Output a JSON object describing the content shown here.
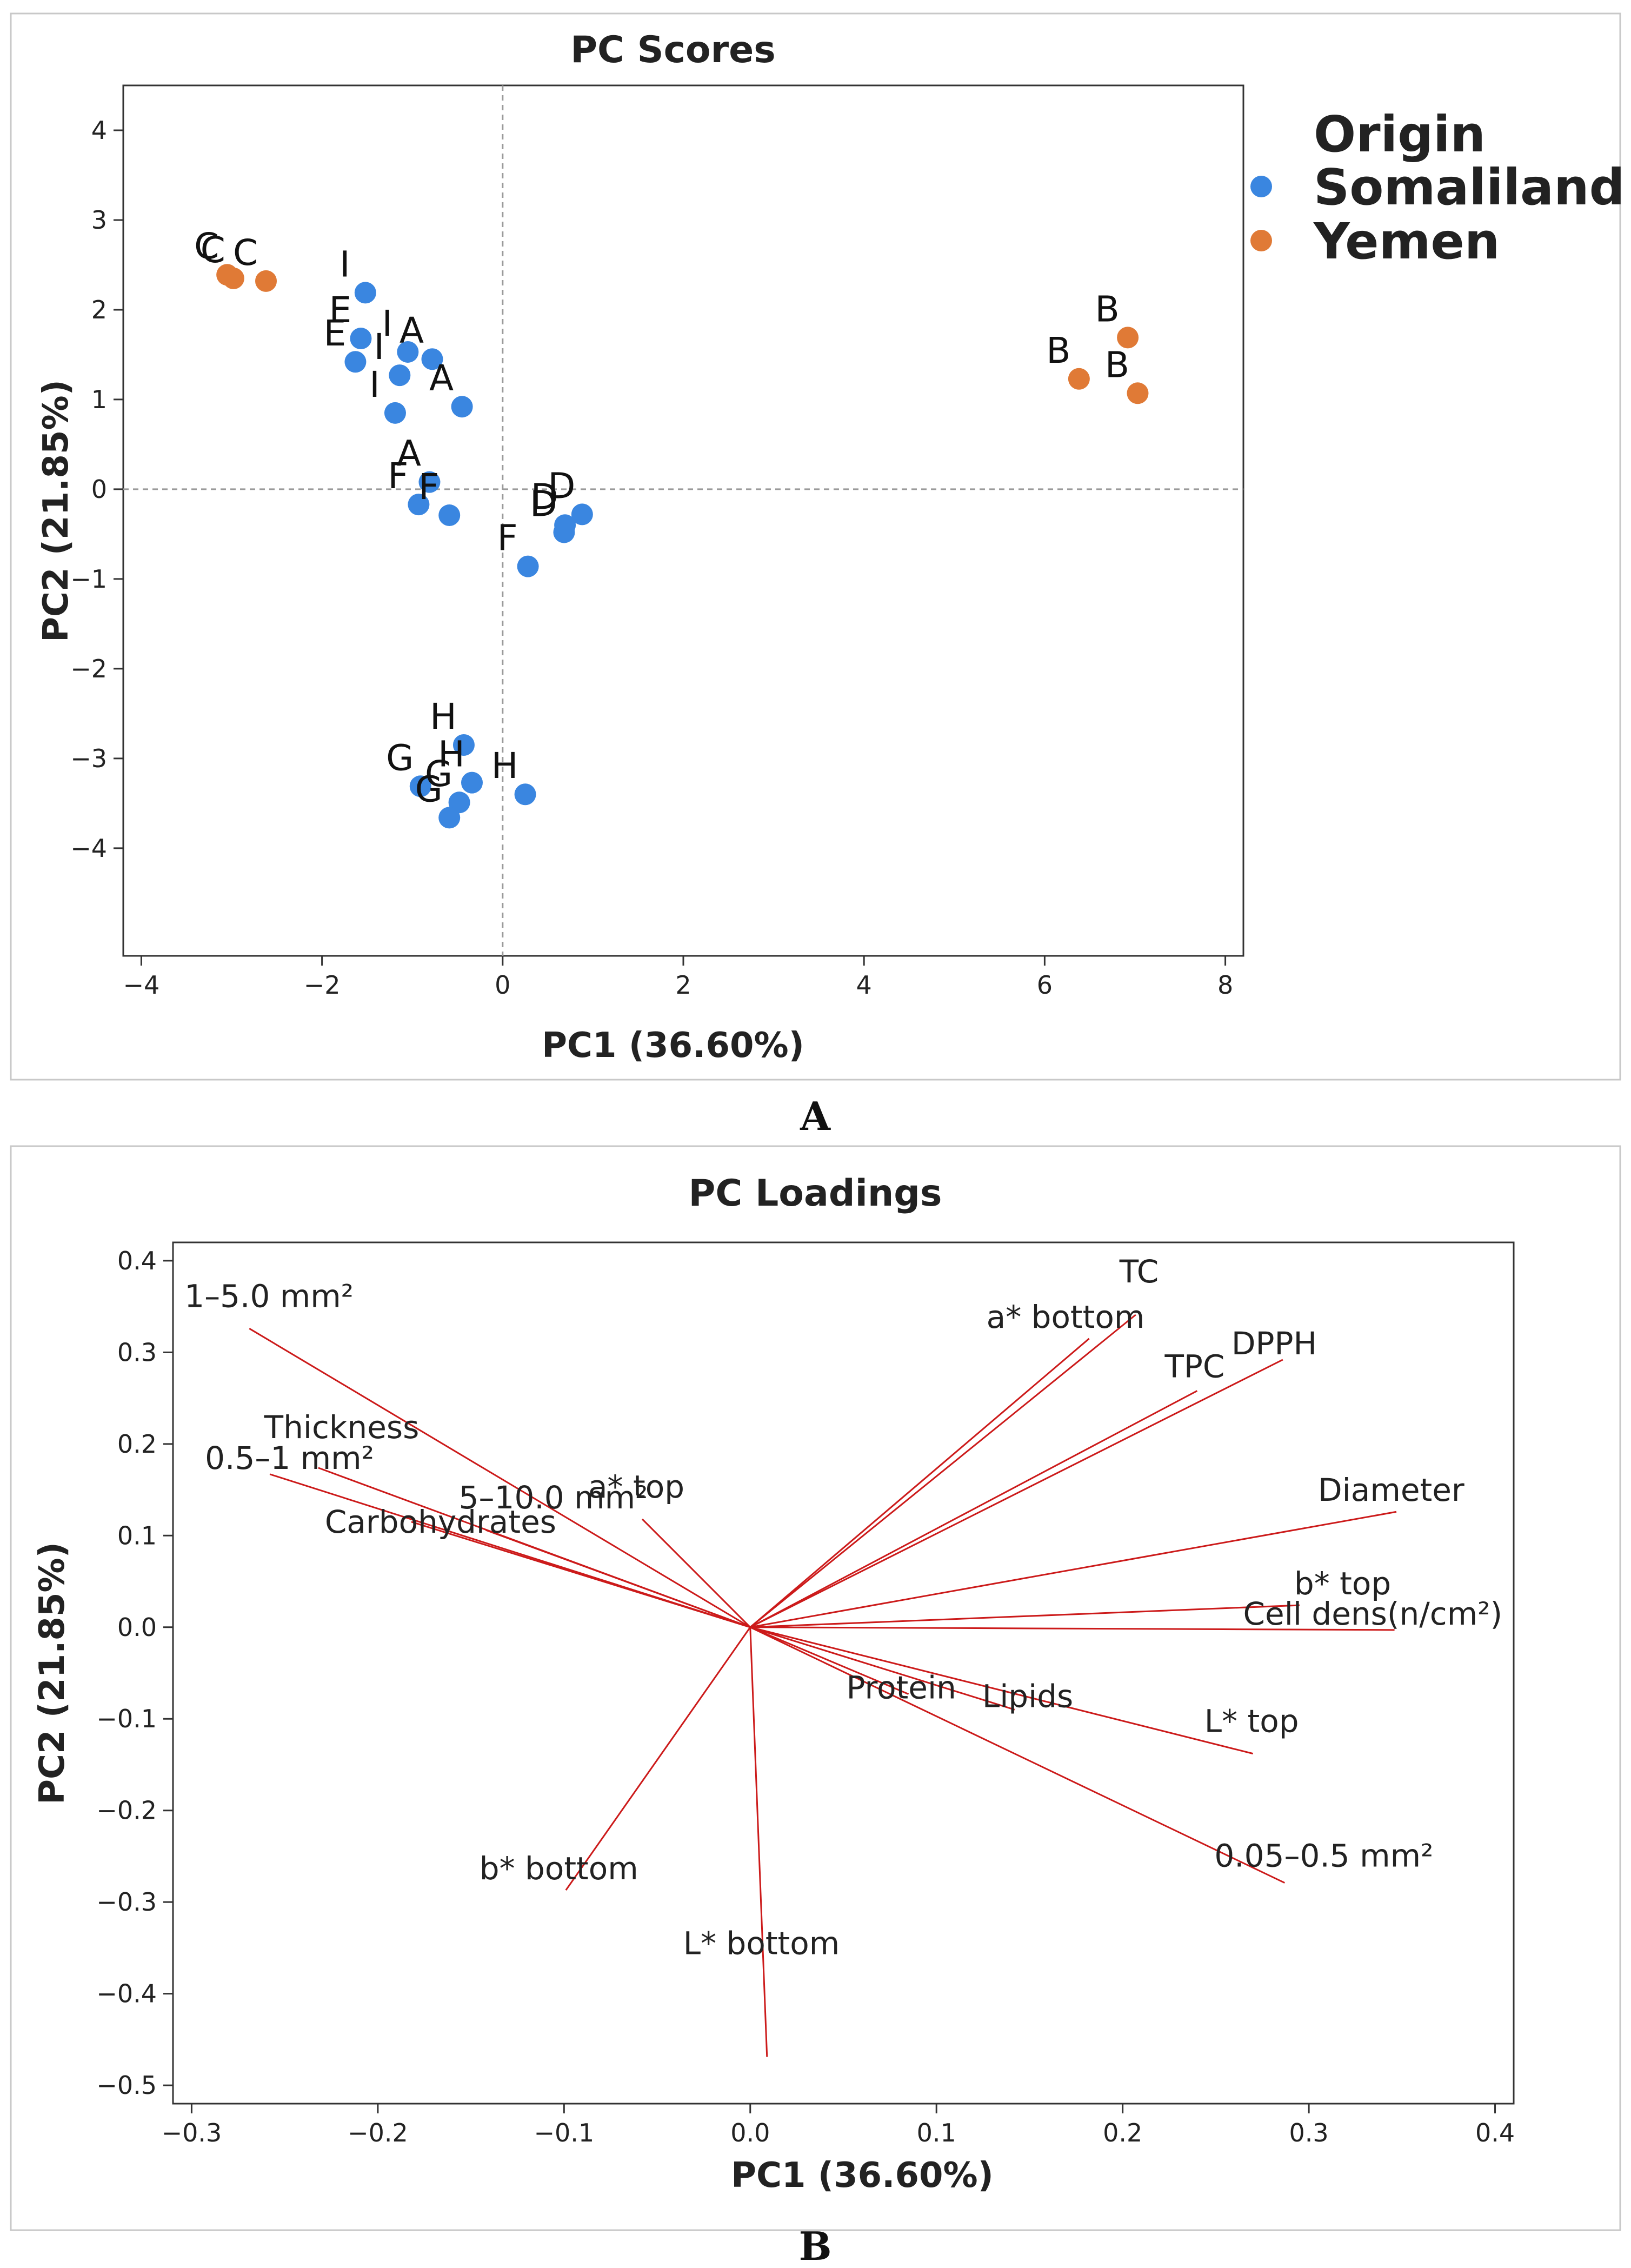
{
  "colors": {
    "somaliland": "#3a86e0",
    "yemen": "#e07a36",
    "loading_line": "#cc1a1a",
    "axis": "#333333",
    "frame": "#c8c8c8",
    "refline": "#9a9a9a"
  },
  "panels": {
    "a_label": "A",
    "b_label": "B"
  },
  "chart_data": [
    {
      "type": "scatter",
      "title": "PC Scores",
      "xlabel": "PC1 (36.60%)",
      "ylabel": "PC2 (21.85%)",
      "xlim": [
        -4.2,
        8.2
      ],
      "ylim": [
        -5.2,
        4.5
      ],
      "xticks": [
        -4,
        -2,
        0,
        2,
        4,
        6,
        8
      ],
      "yticks": [
        -4,
        -3,
        -2,
        -1,
        0,
        1,
        2,
        3,
        4
      ],
      "xtick_labels": [
        "−4",
        "−2",
        "0",
        "2",
        "4",
        "6",
        "8"
      ],
      "ytick_labels": [
        "−4",
        "−3",
        "−2",
        "−1",
        "0",
        "1",
        "2",
        "3",
        "4"
      ],
      "reference_lines": {
        "x": 0,
        "y": 0
      },
      "legend": {
        "title": "Origin",
        "position": "right",
        "entries": [
          {
            "label": "Somaliland",
            "color": "#3a86e0"
          },
          {
            "label": "Yemen",
            "color": "#e07a36"
          }
        ]
      },
      "series": [
        {
          "name": "Somaliland",
          "color": "#3a86e0",
          "points": [
            {
              "x": -1.52,
              "y": 2.19,
              "label": "I"
            },
            {
              "x": -1.05,
              "y": 1.53,
              "label": "I"
            },
            {
              "x": -1.14,
              "y": 1.27,
              "label": "I"
            },
            {
              "x": -1.19,
              "y": 0.85,
              "label": "I"
            },
            {
              "x": -1.57,
              "y": 1.68,
              "label": "E"
            },
            {
              "x": -1.63,
              "y": 1.42,
              "label": "E"
            },
            {
              "x": -0.78,
              "y": 1.45,
              "label": "A"
            },
            {
              "x": -0.45,
              "y": 0.92,
              "label": "A"
            },
            {
              "x": -0.81,
              "y": 0.08,
              "label": "A"
            },
            {
              "x": -0.93,
              "y": -0.17,
              "label": "F"
            },
            {
              "x": -0.59,
              "y": -0.29,
              "label": "F"
            },
            {
              "x": 0.28,
              "y": -0.86,
              "label": "F"
            },
            {
              "x": 0.69,
              "y": -0.4,
              "label": "D"
            },
            {
              "x": 0.88,
              "y": -0.28,
              "label": "D"
            },
            {
              "x": 0.68,
              "y": -0.48,
              "label": "D"
            },
            {
              "x": -0.43,
              "y": -2.85,
              "label": "H"
            },
            {
              "x": -0.34,
              "y": -3.27,
              "label": "H"
            },
            {
              "x": 0.25,
              "y": -3.4,
              "label": "H"
            },
            {
              "x": -0.91,
              "y": -3.31,
              "label": "G"
            },
            {
              "x": -0.48,
              "y": -3.49,
              "label": "G"
            },
            {
              "x": -0.59,
              "y": -3.66,
              "label": "G"
            }
          ]
        },
        {
          "name": "Yemen",
          "color": "#e07a36",
          "points": [
            {
              "x": -3.05,
              "y": 2.39,
              "label": "C"
            },
            {
              "x": -2.98,
              "y": 2.35,
              "label": "C"
            },
            {
              "x": -2.62,
              "y": 2.32,
              "label": "C"
            },
            {
              "x": 6.38,
              "y": 1.23,
              "label": "B"
            },
            {
              "x": 6.92,
              "y": 1.69,
              "label": "B"
            },
            {
              "x": 7.03,
              "y": 1.07,
              "label": "B"
            }
          ]
        }
      ]
    },
    {
      "type": "line",
      "title": "PC Loadings",
      "xlabel": "PC1 (36.60%)",
      "ylabel": "PC2 (21.85%)",
      "xlim": [
        -0.31,
        0.41
      ],
      "ylim": [
        -0.52,
        0.42
      ],
      "xticks": [
        -0.3,
        -0.2,
        -0.1,
        0.0,
        0.1,
        0.2,
        0.3,
        0.4
      ],
      "yticks": [
        -0.5,
        -0.4,
        -0.3,
        -0.2,
        -0.1,
        0.0,
        0.1,
        0.2,
        0.3,
        0.4
      ],
      "xtick_labels": [
        "−0.3",
        "−0.2",
        "−0.1",
        "0.0",
        "0.1",
        "0.2",
        "0.3",
        "0.4"
      ],
      "ytick_labels": [
        "−0.5",
        "−0.4",
        "−0.3",
        "−0.2",
        "−0.1",
        "0.0",
        "0.1",
        "0.2",
        "0.3",
        "0.4"
      ],
      "vectors": [
        {
          "name": "1–5.0 mm²",
          "x": -0.269,
          "y": 0.326
        },
        {
          "name": "Thickness",
          "x": -0.232,
          "y": 0.174
        },
        {
          "name": "0.5–1 mm²",
          "x": -0.258,
          "y": 0.167
        },
        {
          "name": "5–10.0 mm²",
          "x": -0.142,
          "y": 0.106
        },
        {
          "name": "Carbohydrates",
          "x": -0.182,
          "y": 0.115
        },
        {
          "name": "a* top",
          "x": -0.058,
          "y": 0.118
        },
        {
          "name": "TC",
          "x": 0.207,
          "y": 0.341
        },
        {
          "name": "a* bottom",
          "x": 0.182,
          "y": 0.315
        },
        {
          "name": "DPPH",
          "x": 0.286,
          "y": 0.292
        },
        {
          "name": "TPC",
          "x": 0.24,
          "y": 0.258
        },
        {
          "name": "Diameter",
          "x": 0.347,
          "y": 0.126
        },
        {
          "name": "b* top",
          "x": 0.295,
          "y": 0.024
        },
        {
          "name": "Cell dens(n/cm²)",
          "x": 0.346,
          "y": -0.003
        },
        {
          "name": "Protein",
          "x": 0.085,
          "y": -0.073
        },
        {
          "name": "Lipids",
          "x": 0.142,
          "y": -0.09
        },
        {
          "name": "L* top",
          "x": 0.27,
          "y": -0.138
        },
        {
          "name": "0.05–0.5 mm²",
          "x": 0.287,
          "y": -0.279
        },
        {
          "name": "b* bottom",
          "x": -0.099,
          "y": -0.287
        },
        {
          "name": "L* bottom",
          "x": 0.009,
          "y": -0.469
        }
      ]
    }
  ]
}
